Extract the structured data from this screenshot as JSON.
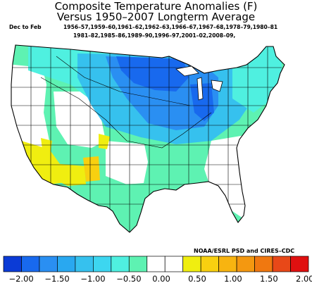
{
  "header": {
    "title_line1": "Composite Temperature Anomalies (F)",
    "title_line2": "Versus 1950–2007 Longterm Average",
    "period": "Dec to Feb",
    "years_line1": "1956–57,1959–60,1961–62,1962–63,1966–67,1967–68,1978–79,1980–81",
    "years_line2": "1981–82,1985–86,1989–90,1996–97,2001–02,2008–09,"
  },
  "credit": "NOAA/ESRL PSD and CIRES–CDC",
  "colorbar": {
    "colors": [
      "#0b3bd6",
      "#1869ee",
      "#2a8ff2",
      "#29a8f0",
      "#36c1ee",
      "#3dd6f0",
      "#4ff0e0",
      "#5ef2b2",
      "#ffffff",
      "#ffffff",
      "#f0ee10",
      "#f8d010",
      "#f8b410",
      "#f49810",
      "#f07810",
      "#e84818",
      "#e01010"
    ],
    "tick_labels": [
      "−2.00",
      "−1.50",
      "−1.00",
      "−0.50",
      "0.00",
      "0.50",
      "1.00",
      "1.50",
      "2.00"
    ]
  },
  "map_colors": {
    "strong_blue": "#1869ee",
    "blue": "#2a8ff2",
    "light_blue": "#36c1ee",
    "cyan": "#4ff0e0",
    "green": "#5ef2b2",
    "white": "#ffffff",
    "yellow": "#f0ee10",
    "orange": "#f8d010"
  }
}
